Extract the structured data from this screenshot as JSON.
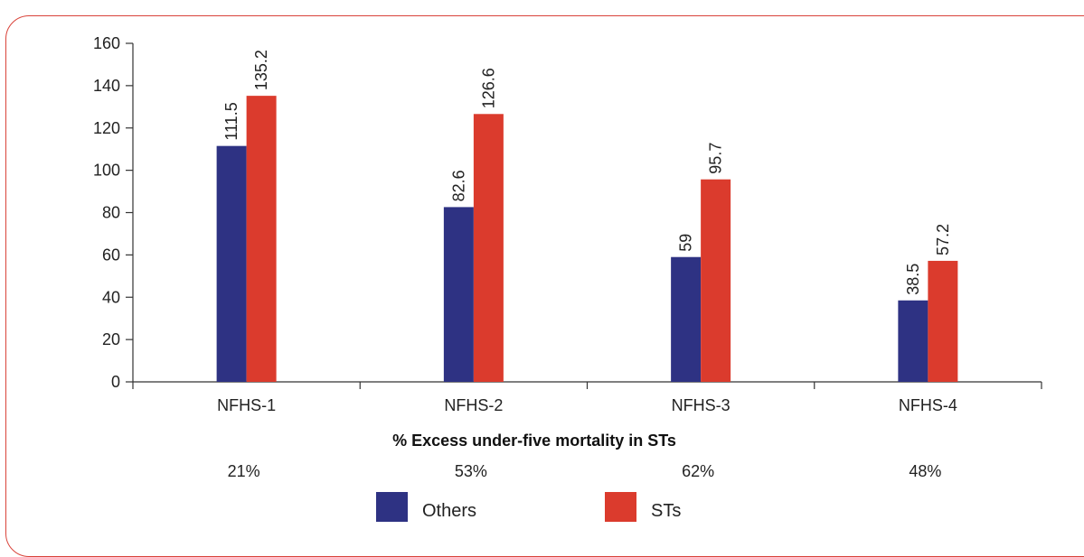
{
  "chart_data": {
    "type": "bar",
    "categories": [
      "NFHS-1",
      "NFHS-2",
      "NFHS-3",
      "NFHS-4"
    ],
    "series": [
      {
        "name": "Others",
        "values": [
          111.5,
          82.6,
          59,
          38.5
        ],
        "color": "#2e3283"
      },
      {
        "name": "STs",
        "values": [
          135.2,
          126.6,
          95.7,
          57.2
        ],
        "color": "#db3b2d"
      }
    ],
    "data_labels": {
      "Others": [
        "111.5",
        "82.6",
        "59",
        "38.5"
      ],
      "STs": [
        "135.2",
        "126.6",
        "95.7",
        "57.2"
      ]
    },
    "ylim": [
      0,
      160
    ],
    "yticks": [
      0,
      20,
      40,
      60,
      80,
      100,
      120,
      140,
      160
    ],
    "grid": false,
    "legend_position": "bottom-center",
    "excess": {
      "title": "% Excess under-five mortality in STs",
      "values": [
        "21%",
        "53%",
        "62%",
        "48%"
      ]
    }
  }
}
